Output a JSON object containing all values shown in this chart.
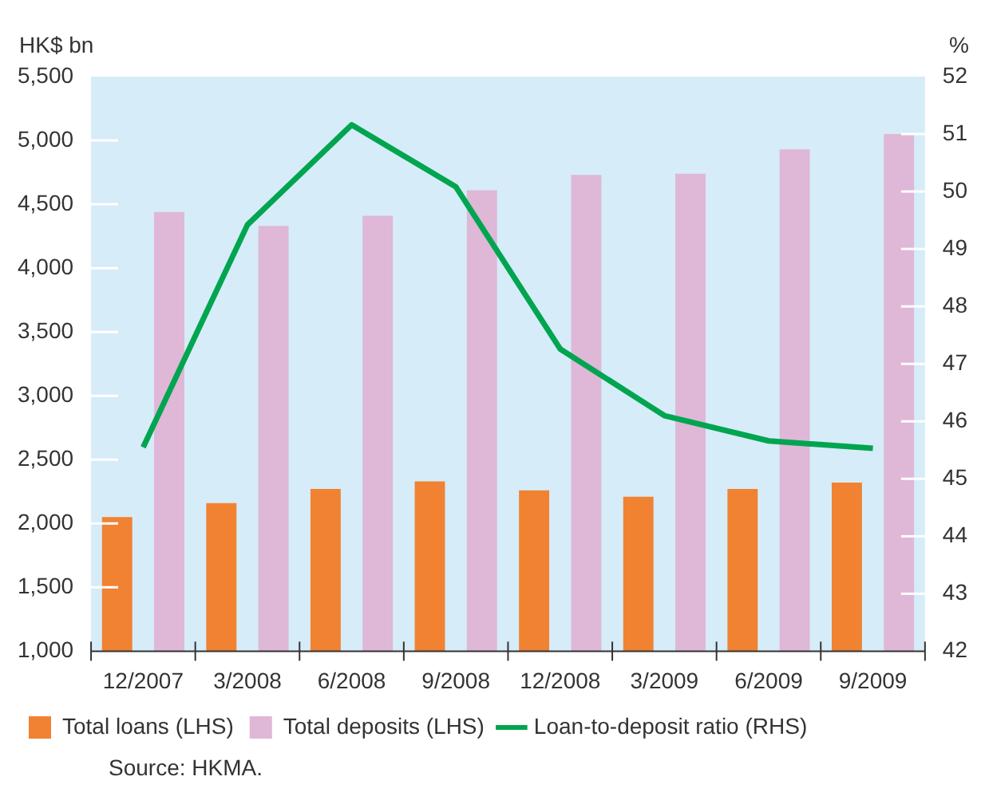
{
  "chart_data": {
    "type": "bar",
    "ylabel": "HK$ bn",
    "y2label": "%",
    "annotations": [
      "Source: HKMA."
    ],
    "categories": [
      "12/2007",
      "3/2008",
      "6/2008",
      "9/2008",
      "12/2008",
      "3/2009",
      "6/2009",
      "9/2009"
    ],
    "series": [
      {
        "name": "Total loans (LHS)",
        "color": "#f08232",
        "values": [
          2050,
          2160,
          2270,
          2330,
          2260,
          2210,
          2270,
          2320
        ]
      },
      {
        "name": "Total deposits (LHS)",
        "color": "#dfb7d7",
        "values": [
          4440,
          4330,
          4410,
          4610,
          4730,
          4740,
          4930,
          5050
        ]
      },
      {
        "name": "Loan-to-deposit ratio (RHS)",
        "type": "line",
        "axis": "y2",
        "color": "#00a550",
        "values": [
          45.55,
          49.42,
          51.16,
          50.08,
          47.26,
          46.1,
          45.66,
          45.53
        ]
      }
    ],
    "ylim": [
      1000,
      5500
    ],
    "yticks": [
      {
        "value": 1000,
        "label": "1,000"
      },
      {
        "value": 1500,
        "label": "1,500"
      },
      {
        "value": 2000,
        "label": "2,000"
      },
      {
        "value": 2500,
        "label": "2,500"
      },
      {
        "value": 3000,
        "label": "3,000"
      },
      {
        "value": 3500,
        "label": "3,500"
      },
      {
        "value": 4000,
        "label": "4,000"
      },
      {
        "value": 4500,
        "label": "4,500"
      },
      {
        "value": 5000,
        "label": "5,000"
      },
      {
        "value": 5500,
        "label": "5,500"
      }
    ],
    "y2lim": [
      42,
      52
    ],
    "y2ticks": [
      42,
      43,
      44,
      45,
      46,
      47,
      48,
      49,
      50,
      51,
      52
    ],
    "legend": "bottom",
    "grid": false,
    "marker": "none"
  }
}
